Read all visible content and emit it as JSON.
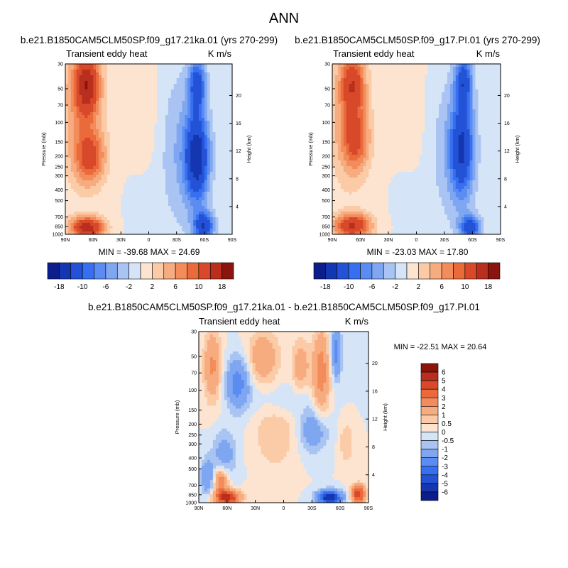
{
  "figure": {
    "title": "ANN"
  },
  "colors": {
    "min": "#0c1d8c",
    "neg": [
      "#0c1d8c",
      "#1436b0",
      "#2352d6",
      "#3670f0",
      "#5a8cf2",
      "#7fa6f0",
      "#a9c4f2",
      "#d5e4f6"
    ],
    "pos": [
      "#fde4d0",
      "#fbcaa6",
      "#f7ac80",
      "#f28c5a",
      "#ea6a3c",
      "#d8492a",
      "#b92e1d",
      "#8a150f"
    ],
    "zero_pos": "#fde4d0",
    "zero_neg": "#d5e4f6"
  },
  "chart_data": [
    {
      "type": "heatmap",
      "panel": "top-left",
      "title": "b.e21.B1850CAM5CLM50SP.f09_g17.21ka.01 (yrs 270-299)",
      "left_label": "Transient eddy heat",
      "right_label": "K m/s",
      "ylabel": "Pressure (mb)",
      "ylabel_right": "Height (km)",
      "x_ticks": [
        "90N",
        "60N",
        "30N",
        "0",
        "30S",
        "60S",
        "90S"
      ],
      "y_ticks": [
        "30",
        "50",
        "70",
        "100",
        "150",
        "200",
        "250",
        "300",
        "400",
        "500",
        "700",
        "850",
        "1000"
      ],
      "y_ticks_right": [
        "20",
        "16",
        "12",
        "8",
        "4"
      ],
      "min_max": "MIN = -39.68  MAX =  24.69",
      "colorbar_labels": [
        "-18",
        "-10",
        "-6",
        "-2",
        "2",
        "6",
        "10",
        "18"
      ]
    },
    {
      "type": "heatmap",
      "panel": "top-right",
      "title": "b.e21.B1850CAM5CLM50SP.f09_g17.PI.01 (yrs 270-299)",
      "left_label": "Transient eddy heat",
      "right_label": "K m/s",
      "ylabel": "Pressure (mb)",
      "ylabel_right": "Height (km)",
      "x_ticks": [
        "90N",
        "60N",
        "30N",
        "0",
        "30S",
        "60S",
        "90S"
      ],
      "y_ticks": [
        "30",
        "50",
        "70",
        "100",
        "150",
        "200",
        "250",
        "300",
        "400",
        "500",
        "700",
        "850",
        "1000"
      ],
      "y_ticks_right": [
        "20",
        "16",
        "12",
        "8",
        "4"
      ],
      "min_max": "MIN = -23.03  MAX =  17.80",
      "colorbar_labels": [
        "-18",
        "-10",
        "-6",
        "-2",
        "2",
        "6",
        "10",
        "18"
      ]
    },
    {
      "type": "heatmap",
      "panel": "bottom",
      "title": "b.e21.B1850CAM5CLM50SP.f09_g17.21ka.01 - b.e21.B1850CAM5CLM50SP.f09_g17.PI.01",
      "left_label": "Transient eddy heat",
      "right_label": "K m/s",
      "ylabel": "Pressure (mb)",
      "ylabel_right": "Height (km)",
      "x_ticks": [
        "90N",
        "60N",
        "30N",
        "0",
        "30S",
        "60S",
        "90S"
      ],
      "y_ticks": [
        "30",
        "50",
        "70",
        "100",
        "150",
        "200",
        "250",
        "300",
        "400",
        "500",
        "700",
        "850",
        "1000"
      ],
      "y_ticks_right": [
        "20",
        "16",
        "12",
        "8",
        "4"
      ],
      "min_max": "MIN = -22.51  MAX =  20.64",
      "colorbar_labels": [
        "6",
        "5",
        "4",
        "3",
        "2",
        "1",
        "0.5",
        "0",
        "-0.5",
        "-1",
        "-2",
        "-3",
        "-4",
        "-5",
        "-6"
      ]
    }
  ]
}
